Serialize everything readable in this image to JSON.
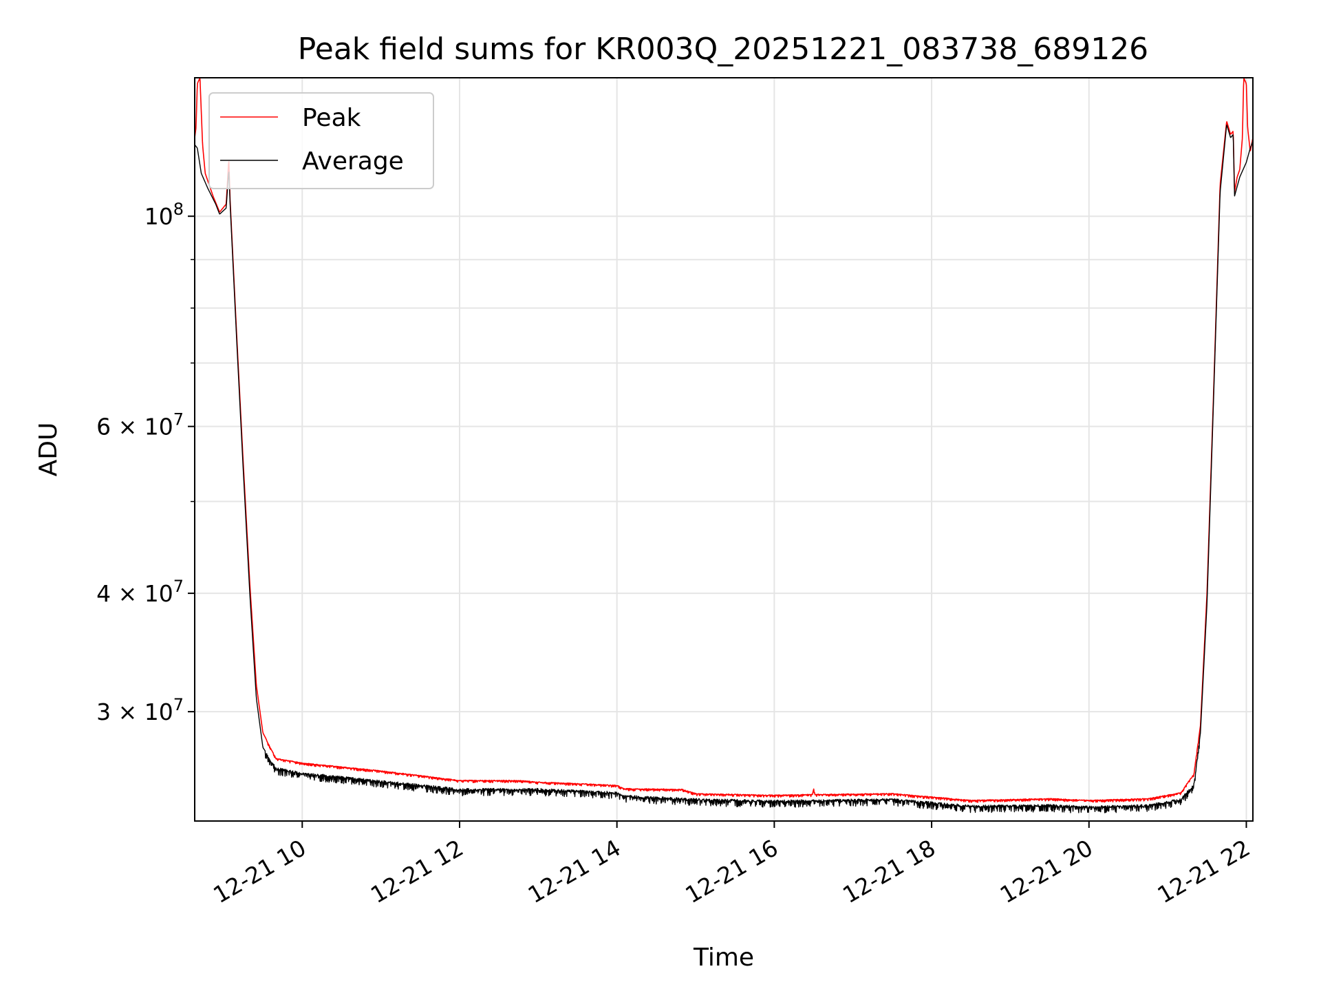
{
  "chart_data": {
    "type": "line",
    "title": "Peak field sums for KR003Q_20251221_083738_689126",
    "xlabel": "Time",
    "ylabel": "ADU",
    "y_scale": "log",
    "x_range": [
      "2025-12-21T08:38",
      "2025-12-21T22:05"
    ],
    "ylim": [
      23000000,
      140000000
    ],
    "grid": true,
    "legend_position": "top-left",
    "x_ticks": [
      {
        "t": "2025-12-21T10:00",
        "label": "12-21 10"
      },
      {
        "t": "2025-12-21T12:00",
        "label": "12-21 12"
      },
      {
        "t": "2025-12-21T14:00",
        "label": "12-21 14"
      },
      {
        "t": "2025-12-21T16:00",
        "label": "12-21 16"
      },
      {
        "t": "2025-12-21T18:00",
        "label": "12-21 18"
      },
      {
        "t": "2025-12-21T20:00",
        "label": "12-21 20"
      },
      {
        "t": "2025-12-21T22:00",
        "label": "12-21 22"
      }
    ],
    "y_major_ticks": [
      {
        "value": 100000000,
        "mantissa": "",
        "exponent": "8"
      },
      {
        "value": 60000000,
        "mantissa": "6",
        "exponent": "7"
      },
      {
        "value": 40000000,
        "mantissa": "4",
        "exponent": "7"
      },
      {
        "value": 30000000,
        "mantissa": "3",
        "exponent": "7"
      }
    ],
    "y_minor_ticks": [
      50000000,
      70000000,
      80000000,
      90000000
    ],
    "series": [
      {
        "name": "Peak",
        "color": "#ff0000",
        "points": [
          [
            "2025-12-21T08:38",
            121000000
          ],
          [
            "2025-12-21T08:39",
            124000000
          ],
          [
            "2025-12-21T08:40",
            138000000
          ],
          [
            "2025-12-21T08:42",
            140000000
          ],
          [
            "2025-12-21T08:44",
            119000000
          ],
          [
            "2025-12-21T08:46",
            111000000
          ],
          [
            "2025-12-21T08:52",
            105000000
          ],
          [
            "2025-12-21T08:57",
            101000000
          ],
          [
            "2025-12-21T09:02",
            103000000
          ],
          [
            "2025-12-21T09:04",
            115000000
          ],
          [
            "2025-12-21T09:05",
            104000000
          ],
          [
            "2025-12-21T09:10",
            75000000
          ],
          [
            "2025-12-21T09:15",
            55000000
          ],
          [
            "2025-12-21T09:20",
            41000000
          ],
          [
            "2025-12-21T09:25",
            32000000
          ],
          [
            "2025-12-21T09:30",
            28500000
          ],
          [
            "2025-12-21T09:40",
            26800000
          ],
          [
            "2025-12-21T10:00",
            26500000
          ],
          [
            "2025-12-21T11:00",
            26000000
          ],
          [
            "2025-12-21T12:00",
            25400000
          ],
          [
            "2025-12-21T12:45",
            25400000
          ],
          [
            "2025-12-21T13:00",
            25300000
          ],
          [
            "2025-12-21T14:00",
            25100000
          ],
          [
            "2025-12-21T14:05",
            24900000
          ],
          [
            "2025-12-21T14:50",
            24850000
          ],
          [
            "2025-12-21T15:00",
            24600000
          ],
          [
            "2025-12-21T16:00",
            24500000
          ],
          [
            "2025-12-21T16:29",
            24550000
          ],
          [
            "2025-12-21T16:30",
            24900000
          ],
          [
            "2025-12-21T16:31",
            24550000
          ],
          [
            "2025-12-21T17:30",
            24600000
          ],
          [
            "2025-12-21T18:00",
            24400000
          ],
          [
            "2025-12-21T18:30",
            24200000
          ],
          [
            "2025-12-21T19:30",
            24300000
          ],
          [
            "2025-12-21T20:00",
            24200000
          ],
          [
            "2025-12-21T20:45",
            24300000
          ],
          [
            "2025-12-21T21:10",
            24650000
          ],
          [
            "2025-12-21T21:20",
            25800000
          ],
          [
            "2025-12-21T21:25",
            29000000
          ],
          [
            "2025-12-21T21:30",
            40000000
          ],
          [
            "2025-12-21T21:35",
            65000000
          ],
          [
            "2025-12-21T21:40",
            108000000
          ],
          [
            "2025-12-21T21:45",
            126000000
          ],
          [
            "2025-12-21T21:48",
            122000000
          ],
          [
            "2025-12-21T21:50",
            123000000
          ],
          [
            "2025-12-21T21:51",
            106000000
          ],
          [
            "2025-12-21T21:53",
            110000000
          ],
          [
            "2025-12-21T21:55",
            112000000
          ],
          [
            "2025-12-21T21:57",
            121000000
          ],
          [
            "2025-12-21T21:58",
            140000000
          ],
          [
            "2025-12-21T22:00",
            138000000
          ],
          [
            "2025-12-21T22:01",
            124000000
          ],
          [
            "2025-12-21T22:03",
            117000000
          ],
          [
            "2025-12-21T22:05",
            121000000
          ]
        ]
      },
      {
        "name": "Average",
        "color": "#000000",
        "points": [
          [
            "2025-12-21T08:38",
            119000000
          ],
          [
            "2025-12-21T08:40",
            118000000
          ],
          [
            "2025-12-21T08:43",
            111000000
          ],
          [
            "2025-12-21T08:48",
            107000000
          ],
          [
            "2025-12-21T08:54",
            103000000
          ],
          [
            "2025-12-21T08:57",
            100500000
          ],
          [
            "2025-12-21T09:02",
            102000000
          ],
          [
            "2025-12-21T09:04",
            112000000
          ],
          [
            "2025-12-21T09:05",
            103000000
          ],
          [
            "2025-12-21T09:10",
            74000000
          ],
          [
            "2025-12-21T09:15",
            54000000
          ],
          [
            "2025-12-21T09:20",
            40000000
          ],
          [
            "2025-12-21T09:25",
            31000000
          ],
          [
            "2025-12-21T09:30",
            27500000
          ],
          [
            "2025-12-21T09:40",
            26200000
          ],
          [
            "2025-12-21T10:00",
            25900000
          ],
          [
            "2025-12-21T11:00",
            25400000
          ],
          [
            "2025-12-21T12:00",
            24900000
          ],
          [
            "2025-12-21T13:00",
            24900000
          ],
          [
            "2025-12-21T14:00",
            24700000
          ],
          [
            "2025-12-21T14:05",
            24500000
          ],
          [
            "2025-12-21T15:00",
            24300000
          ],
          [
            "2025-12-21T16:00",
            24200000
          ],
          [
            "2025-12-21T17:30",
            24300000
          ],
          [
            "2025-12-21T18:00",
            24100000
          ],
          [
            "2025-12-21T18:30",
            23900000
          ],
          [
            "2025-12-21T19:30",
            23950000
          ],
          [
            "2025-12-21T20:00",
            23850000
          ],
          [
            "2025-12-21T20:45",
            23950000
          ],
          [
            "2025-12-21T21:10",
            24300000
          ],
          [
            "2025-12-21T21:20",
            25200000
          ],
          [
            "2025-12-21T21:25",
            28500000
          ],
          [
            "2025-12-21T21:30",
            39000000
          ],
          [
            "2025-12-21T21:35",
            64000000
          ],
          [
            "2025-12-21T21:40",
            106000000
          ],
          [
            "2025-12-21T21:45",
            125000000
          ],
          [
            "2025-12-21T21:48",
            121000000
          ],
          [
            "2025-12-21T21:50",
            122000000
          ],
          [
            "2025-12-21T21:51",
            105000000
          ],
          [
            "2025-12-21T21:55",
            110000000
          ],
          [
            "2025-12-21T22:00",
            114000000
          ],
          [
            "2025-12-21T22:03",
            118000000
          ],
          [
            "2025-12-21T22:05",
            120000000
          ]
        ]
      }
    ]
  }
}
